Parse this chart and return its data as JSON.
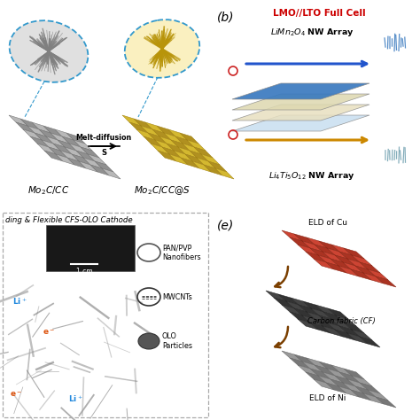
{
  "bg_color": "#ffffff",
  "panel_a_label_left": "$Mo_2C/CC$",
  "panel_a_label_right": "$Mo_2C/CC@S$",
  "panel_a_arrow_label": "Melt-diffusion",
  "panel_a_arrow_sublabel": "S",
  "panel_b_label": "(b)",
  "panel_b_title": "LMO//LTO Full Cell",
  "panel_b_text1": "$LiMn_2O_4$ NW Array",
  "panel_b_text2": "$Li_4Ti_5O_{12}$ NW Array",
  "panel_e_label": "(e)",
  "panel_e_text1": "ELD of Cu",
  "panel_e_text2": "Carbon fabric (CF)",
  "panel_e_text3": "ELD of Ni",
  "panel_d_title": "ding & Flexible CFS-OLO Cathode",
  "panel_d_scale": "1 cm",
  "legend1": "PAN/PVP\nNanofibers",
  "legend2": "MWCNTs",
  "legend3": "OLO\nParticles",
  "gray_fabric_color": "#b8b8b8",
  "gray_fabric_edge": "#707070",
  "gray_fabric_dark": "#909090",
  "yellow_fabric_color": "#d4b830",
  "yellow_fabric_edge": "#a08010",
  "yellow_fabric_dark": "#b09020",
  "red_fabric_color": "#cc4433",
  "red_fabric_edge": "#882211",
  "dark_fabric_color": "#444444",
  "dark_fabric_edge": "#222222",
  "silver_fabric_color": "#999999",
  "silver_fabric_edge": "#666666",
  "blue_layer_color": "#3a7abf",
  "cream_layer_color": "#f0e8c0",
  "light_blue_layer": "#c8dff0"
}
